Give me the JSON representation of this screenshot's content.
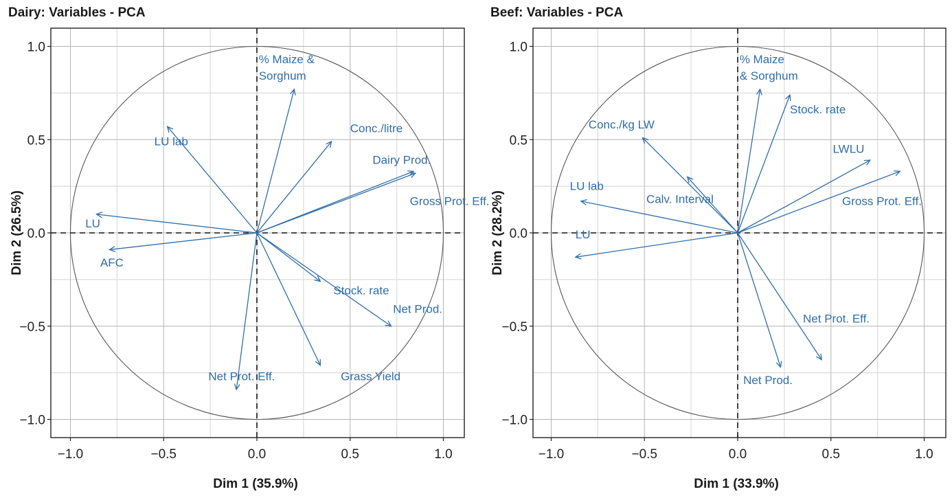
{
  "chart_data": [
    {
      "type": "scatter",
      "subtype": "pca-variable-correlation-circle",
      "title": "Dairy: Variables - PCA",
      "xlabel": "Dim 1 (35.9%)",
      "ylabel": "Dim 2 (26.5%)",
      "xlim": [
        -1.1,
        1.1
      ],
      "ylim": [
        -1.1,
        1.1
      ],
      "xticks": [
        "−1.0",
        "−0.5",
        "0.0",
        "0.5",
        "1.0"
      ],
      "yticks": [
        "−1.0",
        "−0.5",
        "0.0",
        "0.5",
        "1.0"
      ],
      "tick_values": [
        -1.0,
        -0.5,
        0.0,
        0.5,
        1.0
      ],
      "grid": true,
      "unit_circle": true,
      "arrow_color": "#2f6eaa",
      "variables": [
        {
          "name": "% Maize & Sorghum",
          "lines": [
            "% Maize &",
            "Sorghum"
          ],
          "x": 0.2,
          "y": 0.77,
          "label_anchor": "above-left",
          "lx": 0.01,
          "ly": 0.91
        },
        {
          "name": "LU lab",
          "lines": [
            "LU lab"
          ],
          "x": -0.48,
          "y": 0.57,
          "lx": -0.55,
          "ly": 0.47
        },
        {
          "name": "Conc./litre",
          "lines": [
            "Conc./litre"
          ],
          "x": 0.4,
          "y": 0.49,
          "lx": 0.5,
          "ly": 0.54
        },
        {
          "name": "Dairy Prod.",
          "lines": [
            "Dairy Prod."
          ],
          "x": 0.84,
          "y": 0.33,
          "lx": 0.62,
          "ly": 0.37
        },
        {
          "name": "Gross Prot. Eff.",
          "lines": [
            "Gross Prot. Eff."
          ],
          "x": 0.85,
          "y": 0.32,
          "lx": 0.82,
          "ly": 0.15
        },
        {
          "name": "LU",
          "lines": [
            "LU"
          ],
          "x": -0.86,
          "y": 0.1,
          "lx": -0.92,
          "ly": 0.03
        },
        {
          "name": "AFC",
          "lines": [
            "AFC"
          ],
          "x": -0.79,
          "y": -0.09,
          "lx": -0.84,
          "ly": -0.18
        },
        {
          "name": "Stock. rate",
          "lines": [
            "Stock. rate"
          ],
          "x": 0.34,
          "y": -0.26,
          "lx": 0.41,
          "ly": -0.33
        },
        {
          "name": "Net Prod.",
          "lines": [
            "Net Prod."
          ],
          "x": 0.72,
          "y": -0.5,
          "lx": 0.73,
          "ly": -0.43
        },
        {
          "name": "Grass Yield",
          "lines": [
            "Grass Yield"
          ],
          "x": 0.34,
          "y": -0.71,
          "lx": 0.45,
          "ly": -0.79
        },
        {
          "name": "Net Prot. Eff.",
          "lines": [
            "Net Prot. Eff."
          ],
          "x": -0.11,
          "y": -0.84,
          "lx": -0.26,
          "ly": -0.79
        }
      ]
    },
    {
      "type": "scatter",
      "subtype": "pca-variable-correlation-circle",
      "title": "Beef: Variables - PCA",
      "xlabel": "Dim 1 (33.9%)",
      "ylabel": "Dim 2 (28.2%)",
      "xlim": [
        -1.1,
        1.1
      ],
      "ylim": [
        -1.1,
        1.1
      ],
      "xticks": [
        "−1.0",
        "−0.5",
        "0.0",
        "0.5",
        "1.0"
      ],
      "yticks": [
        "−1.0",
        "−0.5",
        "0.0",
        "0.5",
        "1.0"
      ],
      "tick_values": [
        -1.0,
        -0.5,
        0.0,
        0.5,
        1.0
      ],
      "grid": true,
      "unit_circle": true,
      "arrow_color": "#2f6eaa",
      "variables": [
        {
          "name": "% Maize & Sorghum",
          "lines": [
            "% Maize",
            "& Sorghum"
          ],
          "x": 0.12,
          "y": 0.77,
          "lx": 0.01,
          "ly": 0.91
        },
        {
          "name": "Stock. rate",
          "lines": [
            "Stock. rate"
          ],
          "x": 0.28,
          "y": 0.74,
          "lx": 0.28,
          "ly": 0.64
        },
        {
          "name": "Conc./kg LW",
          "lines": [
            "Conc./kg LW"
          ],
          "x": -0.51,
          "y": 0.51,
          "lx": -0.8,
          "ly": 0.56
        },
        {
          "name": "LWLU",
          "lines": [
            "LWLU"
          ],
          "x": 0.71,
          "y": 0.39,
          "lx": 0.51,
          "ly": 0.43
        },
        {
          "name": "Gross Prot. Eff.",
          "lines": [
            "Gross Prot. Eff."
          ],
          "x": 0.87,
          "y": 0.33,
          "lx": 0.56,
          "ly": 0.15
        },
        {
          "name": "Calv. Interval",
          "lines": [
            "Calv. Interval"
          ],
          "x": -0.27,
          "y": 0.3,
          "lx": -0.49,
          "ly": 0.16
        },
        {
          "name": "LU lab",
          "lines": [
            "LU lab"
          ],
          "x": -0.84,
          "y": 0.17,
          "lx": -0.9,
          "ly": 0.23
        },
        {
          "name": "LU",
          "lines": [
            "LU"
          ],
          "x": -0.87,
          "y": -0.13,
          "lx": -0.87,
          "ly": -0.03
        },
        {
          "name": "Net Prot. Eff.",
          "lines": [
            "Net Prot. Eff."
          ],
          "x": 0.45,
          "y": -0.68,
          "lx": 0.35,
          "ly": -0.48
        },
        {
          "name": "Net Prod.",
          "lines": [
            "Net Prod."
          ],
          "x": 0.23,
          "y": -0.72,
          "lx": 0.03,
          "ly": -0.81
        }
      ]
    }
  ]
}
